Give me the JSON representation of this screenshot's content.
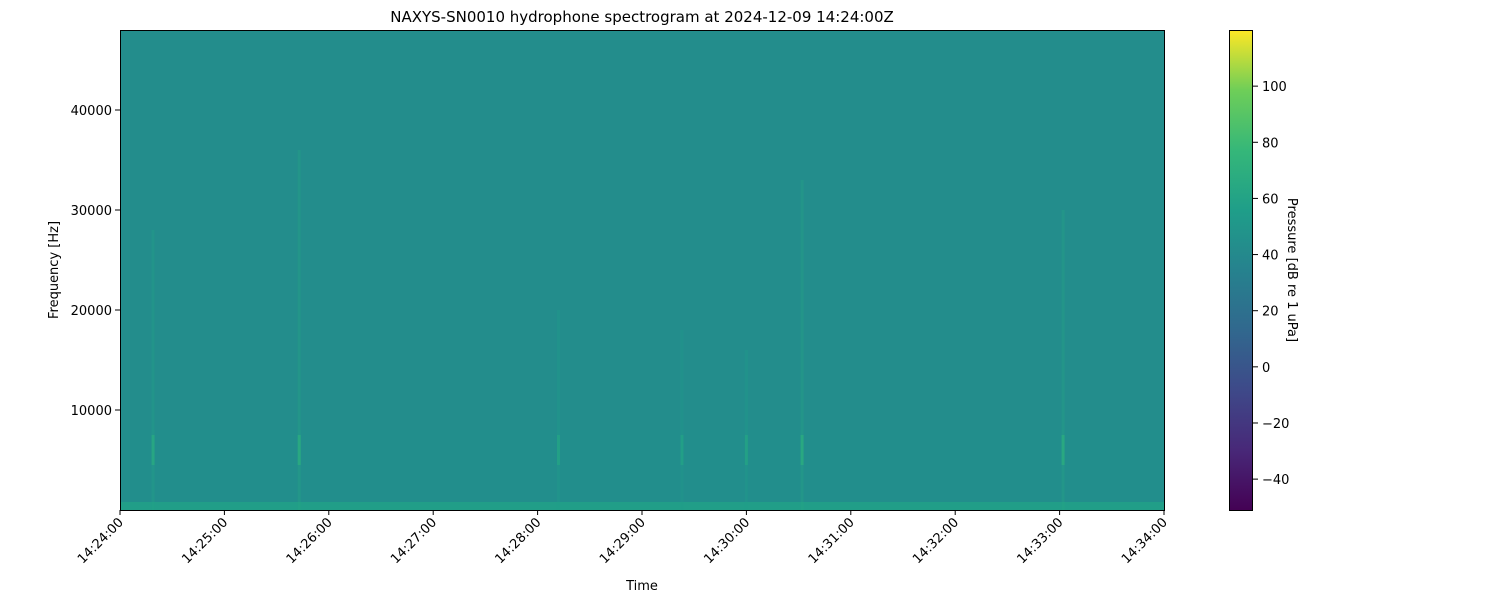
{
  "chart_data": {
    "type": "heatmap",
    "title": "NAXYS-SN0010 hydrophone spectrogram at 2024-12-09 14:24:00Z",
    "xlabel": "Time",
    "ylabel": "Frequency [Hz]",
    "colorbar_label": "Pressure [dB re 1 uPa]",
    "colormap": "viridis",
    "xlim": [
      "14:24:00",
      "14:34:00"
    ],
    "ylim": [
      0,
      48000
    ],
    "clim": [
      -51,
      120
    ],
    "x_ticks": [
      "14:24:00",
      "14:25:00",
      "14:26:00",
      "14:27:00",
      "14:28:00",
      "14:29:00",
      "14:30:00",
      "14:31:00",
      "14:32:00",
      "14:33:00",
      "14:34:00"
    ],
    "y_ticks": [
      10000,
      20000,
      30000,
      40000
    ],
    "y_tick_labels": [
      "10000",
      "20000",
      "30000",
      "40000"
    ],
    "colorbar_ticks": [
      -40,
      -20,
      0,
      20,
      40,
      60,
      80,
      100
    ],
    "colorbar_tick_labels": [
      "−40",
      "−20",
      "0",
      "20",
      "40",
      "60",
      "80",
      "100"
    ],
    "grid": false,
    "background_level_db": 43,
    "bands": [
      {
        "f_low": 0,
        "f_high": 800,
        "level_db": 58
      },
      {
        "f_low": 800,
        "f_high": 8000,
        "level_db": 47
      }
    ],
    "transients": [
      {
        "time": "14:24:19",
        "f_high": 28000,
        "level_db": 60
      },
      {
        "time": "14:25:43",
        "f_high": 36000,
        "level_db": 62
      },
      {
        "time": "14:28:12",
        "f_high": 20000,
        "level_db": 55
      },
      {
        "time": "14:29:23",
        "f_high": 18000,
        "level_db": 54
      },
      {
        "time": "14:30:00",
        "f_high": 16000,
        "level_db": 55
      },
      {
        "time": "14:30:32",
        "f_high": 33000,
        "level_db": 62
      },
      {
        "time": "14:33:02",
        "f_high": 30000,
        "level_db": 62
      }
    ]
  }
}
